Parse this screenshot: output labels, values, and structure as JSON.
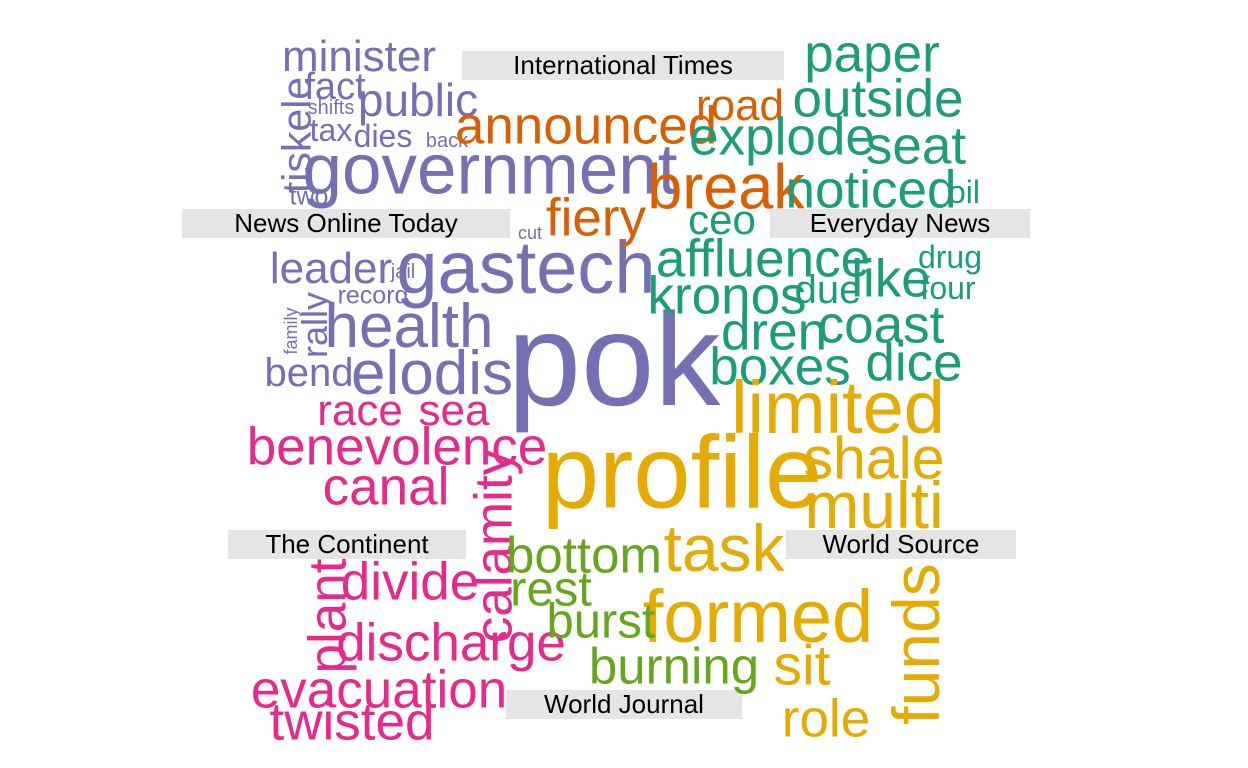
{
  "chart_data": {
    "type": "word_cloud",
    "groups": [
      {
        "name": "International Times",
        "color": "#7570b3",
        "words": [
          {
            "text": "pok",
            "size": 10
          },
          {
            "text": "gastech",
            "size": 5.6
          },
          {
            "text": "government",
            "size": 5.4
          },
          {
            "text": "health",
            "size": 4.7
          },
          {
            "text": "elodis",
            "size": 4.7
          },
          {
            "text": "public",
            "size": 3.5
          },
          {
            "text": "minister",
            "size": 3.3
          },
          {
            "text": "leader",
            "size": 3.3
          },
          {
            "text": "tiskele",
            "size": 3.1
          },
          {
            "text": "bend",
            "size": 3.0
          },
          {
            "text": "fact",
            "size": 2.9
          },
          {
            "text": "rally",
            "size": 2.7
          },
          {
            "text": "tax",
            "size": 2.4
          },
          {
            "text": "dies",
            "size": 2.4
          },
          {
            "text": "record",
            "size": 1.9
          },
          {
            "text": "two",
            "size": 1.9
          },
          {
            "text": "shifts",
            "size": 1.5
          },
          {
            "text": "back",
            "size": 1.5
          },
          {
            "text": "jail",
            "size": 1.5
          },
          {
            "text": "cut",
            "size": 1.4
          },
          {
            "text": "family",
            "size": 1.4
          }
        ]
      },
      {
        "name": "Everyday News",
        "color": "#d95f02",
        "words": [
          {
            "text": "break",
            "size": 4.8
          },
          {
            "text": "announced",
            "size": 4.0
          },
          {
            "text": "fiery",
            "size": 4.0
          },
          {
            "text": "road",
            "size": 3.3
          }
        ]
      },
      {
        "name": "News Online Today",
        "color": "#1b9e77",
        "words": [
          {
            "text": "kronos",
            "size": 4.0
          },
          {
            "text": "affluence",
            "size": 4.0
          },
          {
            "text": "outside",
            "size": 4.0
          },
          {
            "text": "explode",
            "size": 4.0
          },
          {
            "text": "paper",
            "size": 4.0
          },
          {
            "text": "noticed",
            "size": 4.0
          },
          {
            "text": "seat",
            "size": 4.0
          },
          {
            "text": "dren",
            "size": 4.0
          },
          {
            "text": "coast",
            "size": 4.0
          },
          {
            "text": "boxes",
            "size": 4.0
          },
          {
            "text": "dice",
            "size": 4.0
          },
          {
            "text": "like",
            "size": 4.0
          },
          {
            "text": "ceo",
            "size": 3.2
          },
          {
            "text": "due",
            "size": 3.0
          },
          {
            "text": "oil",
            "size": 2.4
          },
          {
            "text": "drug",
            "size": 2.4
          },
          {
            "text": "four",
            "size": 2.4
          }
        ]
      },
      {
        "name": "The Continent",
        "color": "#e7298a",
        "words": [
          {
            "text": "benevolence",
            "size": 4.0
          },
          {
            "text": "canal",
            "size": 4.0
          },
          {
            "text": "calamity",
            "size": 4.0
          },
          {
            "text": "divide",
            "size": 4.0
          },
          {
            "text": "discharge",
            "size": 4.0
          },
          {
            "text": "evacuation",
            "size": 4.0
          },
          {
            "text": "twisted",
            "size": 4.0
          },
          {
            "text": "plant",
            "size": 4.0
          },
          {
            "text": "race",
            "size": 3.3
          },
          {
            "text": "sea",
            "size": 3.3
          }
        ]
      },
      {
        "name": "World Source",
        "color": "#e6ab02",
        "words": [
          {
            "text": "profile",
            "size": 7.8
          },
          {
            "text": "limited",
            "size": 5.6
          },
          {
            "text": "formed",
            "size": 5.6
          },
          {
            "text": "multi",
            "size": 5.0
          },
          {
            "text": "task",
            "size": 5.0
          },
          {
            "text": "funds",
            "size": 5.0
          },
          {
            "text": "shale",
            "size": 4.5
          },
          {
            "text": "sit",
            "size": 4.3
          },
          {
            "text": "role",
            "size": 4.0
          }
        ]
      },
      {
        "name": "World Journal",
        "color": "#66a61e",
        "words": [
          {
            "text": "bottom",
            "size": 3.9
          },
          {
            "text": "burning",
            "size": 3.9
          },
          {
            "text": "rest",
            "size": 3.7
          },
          {
            "text": "burst",
            "size": 3.7
          }
        ]
      }
    ]
  }
}
